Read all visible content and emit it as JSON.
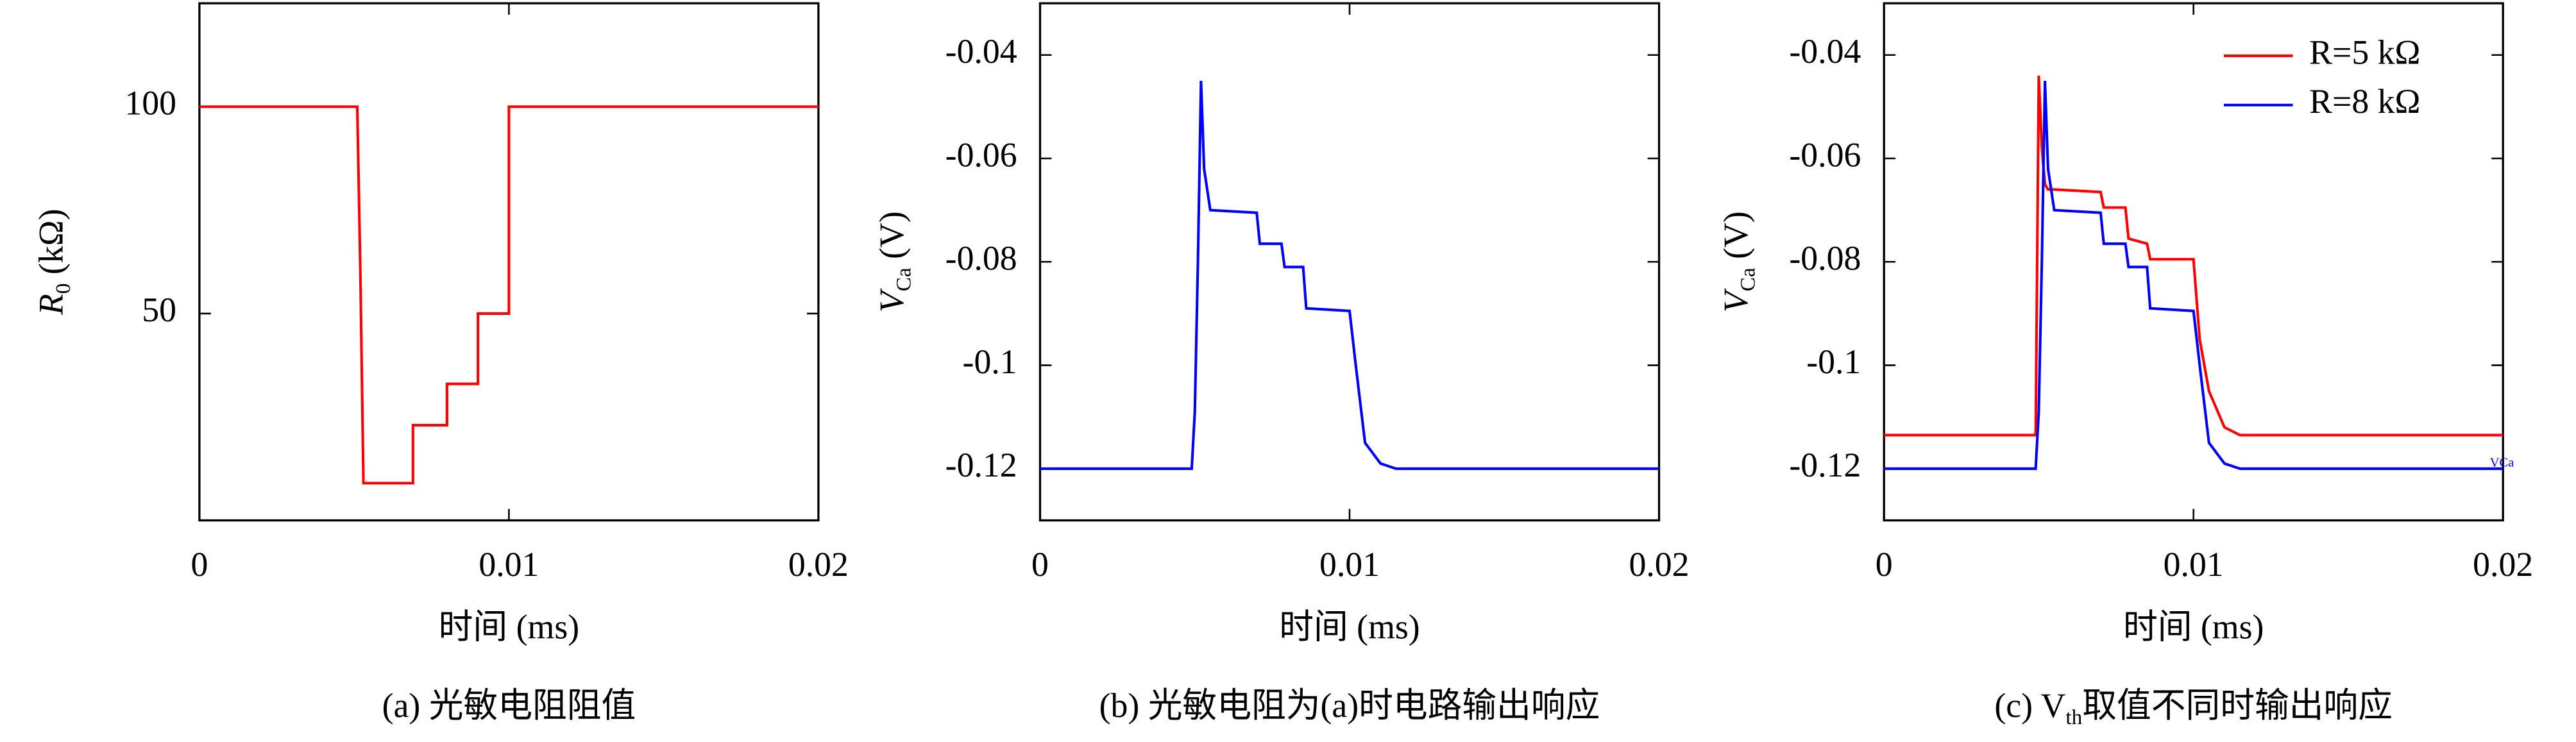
{
  "chart_data": [
    {
      "type": "line",
      "ylabel": {
        "text": "R",
        "sub": "0",
        "rest": " (kΩ)"
      },
      "xlabel": "时间 (ms)",
      "caption": {
        "text": "(a) 光敏电阻阻值"
      },
      "x": [
        0,
        0.0051,
        0.0052,
        0.0053,
        0.0069,
        0.0069,
        0.008,
        0.008,
        0.009,
        0.009,
        0.01,
        0.01,
        0.02
      ],
      "series": [
        {
          "color": "#ff0000",
          "values": [
            100,
            100,
            60,
            9,
            9,
            23,
            23,
            33,
            33,
            50,
            50,
            100,
            100
          ]
        }
      ],
      "xlim": [
        0,
        0.02
      ],
      "xticks": [
        0,
        0.01,
        0.02
      ],
      "ylim": [
        0,
        125
      ],
      "yticks": [
        50,
        100
      ]
    },
    {
      "type": "line",
      "ylabel": {
        "text": "V",
        "sub": "Ca",
        "rest": " (V)"
      },
      "xlabel": "时间 (ms)",
      "caption": {
        "text": "(b) 光敏电阻为(a)时电路输出响应"
      },
      "x": [
        0,
        0.0049,
        0.005,
        0.0051,
        0.0052,
        0.0053,
        0.0055,
        0.007,
        0.0071,
        0.0078,
        0.0079,
        0.0085,
        0.0086,
        0.01,
        0.0102,
        0.0105,
        0.011,
        0.0115,
        0.012,
        0.02
      ],
      "series": [
        {
          "color": "#0000ff",
          "values": [
            -0.12,
            -0.12,
            -0.109,
            -0.08,
            -0.045,
            -0.062,
            -0.07,
            -0.0705,
            -0.0765,
            -0.0765,
            -0.081,
            -0.081,
            -0.089,
            -0.0895,
            -0.1,
            -0.115,
            -0.119,
            -0.12,
            -0.12,
            -0.12
          ]
        }
      ],
      "xlim": [
        0,
        0.02
      ],
      "xticks": [
        0,
        0.01,
        0.02
      ],
      "ylim": [
        -0.13,
        -0.03
      ],
      "yticks": [
        -0.12,
        -0.1,
        -0.08,
        -0.06,
        -0.04
      ]
    },
    {
      "type": "line",
      "ylabel": {
        "text": "V",
        "sub": "Ca",
        "rest": " (V)"
      },
      "xlabel": "时间 (ms)",
      "caption": {
        "text": "(c) V",
        "sub": "th",
        "rest": "取值不同时输出响应"
      },
      "annotation": {
        "text": "V",
        "sub": "Ca"
      },
      "legend": "upper right",
      "x": [
        0,
        0.0049,
        0.005,
        0.0051,
        0.0052,
        0.0053,
        0.0055,
        0.007,
        0.0071,
        0.0078,
        0.0079,
        0.0085,
        0.0086,
        0.01,
        0.0102,
        0.0105,
        0.011,
        0.0115,
        0.012,
        0.02
      ],
      "series": [
        {
          "name": "R=5 kΩ",
          "color": "#ff0000",
          "values": [
            -0.1135,
            -0.1135,
            -0.044,
            -0.058,
            -0.065,
            -0.066,
            -0.066,
            -0.0665,
            -0.0695,
            -0.0695,
            -0.0755,
            -0.0765,
            -0.0795,
            -0.0795,
            -0.095,
            -0.105,
            -0.112,
            -0.1135,
            -0.1135,
            -0.1135
          ]
        },
        {
          "name": "R=8 kΩ",
          "color": "#0000ff",
          "values": [
            -0.12,
            -0.12,
            -0.109,
            -0.08,
            -0.045,
            -0.062,
            -0.07,
            -0.0705,
            -0.0765,
            -0.0765,
            -0.081,
            -0.081,
            -0.089,
            -0.0895,
            -0.1,
            -0.115,
            -0.119,
            -0.12,
            -0.12,
            -0.12
          ]
        }
      ],
      "xlim": [
        0,
        0.02
      ],
      "xticks": [
        0,
        0.01,
        0.02
      ],
      "ylim": [
        -0.13,
        -0.03
      ],
      "yticks": [
        -0.12,
        -0.1,
        -0.08,
        -0.06,
        -0.04
      ]
    }
  ]
}
